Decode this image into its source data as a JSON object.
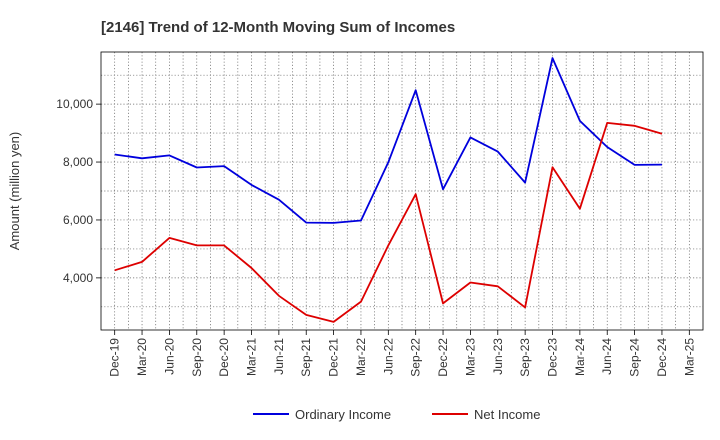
{
  "chart_data": {
    "type": "line",
    "title": "[2146]  Trend of 12-Month Moving Sum of Incomes",
    "ylabel": "Amount (million yen)",
    "xlabel": "",
    "ylim": [
      2200,
      11800
    ],
    "yticks": [
      4000,
      6000,
      8000,
      10000
    ],
    "ytick_labels": [
      "4,000",
      "6,000",
      "8,000",
      "10,000"
    ],
    "categories": [
      "Dec-19",
      "Mar-20",
      "Jun-20",
      "Sep-20",
      "Dec-20",
      "Mar-21",
      "Jun-21",
      "Sep-21",
      "Dec-21",
      "Mar-22",
      "Jun-22",
      "Sep-22",
      "Dec-22",
      "Mar-23",
      "Jun-23",
      "Sep-23",
      "Dec-23",
      "Mar-24",
      "Jun-24",
      "Sep-24",
      "Dec-24",
      "Mar-25"
    ],
    "grid": true,
    "legend_position": "bottom-center",
    "series": [
      {
        "name": "Ordinary Income",
        "color": "#0000dd",
        "values": [
          8260,
          8130,
          8230,
          7810,
          7860,
          7210,
          6700,
          5910,
          5900,
          5980,
          7990,
          10480,
          7060,
          8850,
          8360,
          7290,
          11590,
          9420,
          8520,
          7900,
          7910,
          null
        ]
      },
      {
        "name": "Net Income",
        "color": "#dd0000",
        "values": [
          4260,
          4550,
          5380,
          5120,
          5120,
          4340,
          3380,
          2720,
          2480,
          3180,
          5120,
          6890,
          3120,
          3840,
          3710,
          2980,
          7820,
          6390,
          9350,
          9250,
          8980,
          null
        ]
      }
    ]
  }
}
